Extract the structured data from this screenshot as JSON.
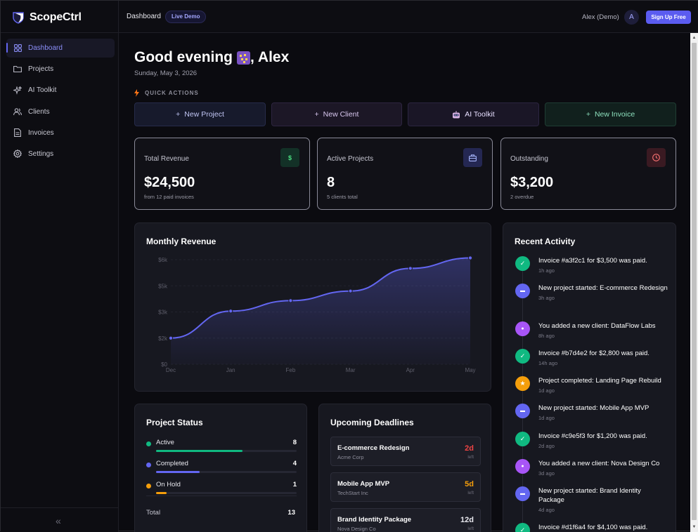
{
  "app": {
    "name": "ScopeCtrl"
  },
  "sidebar": {
    "items": [
      {
        "label": "Dashboard",
        "icon": "grid-icon",
        "active": true
      },
      {
        "label": "Projects",
        "icon": "folder-icon"
      },
      {
        "label": "AI Toolkit",
        "icon": "sparkles-icon"
      },
      {
        "label": "Clients",
        "icon": "users-icon"
      },
      {
        "label": "Invoices",
        "icon": "file-icon"
      },
      {
        "label": "Settings",
        "icon": "gear-icon"
      }
    ],
    "collapse_glyph": "«"
  },
  "topbar": {
    "breadcrumb": "Dashboard",
    "badge": "Live Demo",
    "user_name": "Alex (Demo)",
    "avatar_initial": "A",
    "signup_label": "Sign Up Free"
  },
  "header": {
    "greeting": "Good evening",
    "name": ", Alex",
    "date": "Sunday, May 3, 2026"
  },
  "quick_actions": {
    "label": "QUICK ACTIONS",
    "buttons": [
      {
        "label": "New Project",
        "glyph": "+"
      },
      {
        "label": "New Client",
        "glyph": "+"
      },
      {
        "label": "AI Toolkit",
        "glyph": "🤖"
      },
      {
        "label": "New Invoice",
        "glyph": "+"
      }
    ]
  },
  "stats": [
    {
      "title": "Total Revenue",
      "value": "$24,500",
      "sub": "from 12 paid invoices",
      "icon": "dollar-icon",
      "icon_glyph": "$",
      "color": "#22c55e"
    },
    {
      "title": "Active Projects",
      "value": "8",
      "sub": "5 clients total",
      "icon": "briefcase-icon",
      "icon_glyph": "",
      "color": "#818cf8"
    },
    {
      "title": "Outstanding",
      "value": "$3,200",
      "sub": "2 overdue",
      "icon": "clock-icon",
      "icon_glyph": "",
      "color": "#ef4444"
    }
  ],
  "revenue_card": {
    "title": "Monthly Revenue"
  },
  "chart_data": {
    "type": "area",
    "title": "Monthly Revenue",
    "categories": [
      "Dec",
      "Jan",
      "Feb",
      "Mar",
      "Apr",
      "May"
    ],
    "values": [
      1500,
      3050,
      3650,
      4200,
      5500,
      6100
    ],
    "y_ticks": [
      "$0",
      "$2k",
      "$3k",
      "$5k",
      "$6k"
    ],
    "y_tick_values": [
      0,
      1500,
      3000,
      4500,
      6000
    ],
    "ylim": [
      0,
      6000
    ],
    "line_color": "#6366f1",
    "grid": true
  },
  "activity": {
    "title": "Recent Activity",
    "items": [
      {
        "text": "Invoice #a3f2c1 for $3,500 was paid.",
        "time": "1h ago",
        "kind": "check",
        "color": "#10b981"
      },
      {
        "text": "New project started: E-commerce Redesign",
        "time": "3h ago",
        "kind": "folder",
        "color": "#6366f1"
      },
      {
        "text": "You added a new client: DataFlow Labs",
        "time": "8h ago",
        "kind": "user",
        "color": "#a855f7"
      },
      {
        "text": "Invoice #b7d4e2 for $2,800 was paid.",
        "time": "14h ago",
        "kind": "check",
        "color": "#10b981"
      },
      {
        "text": "Project completed: Landing Page Rebuild",
        "time": "1d ago",
        "kind": "star",
        "color": "#f59e0b"
      },
      {
        "text": "New project started: Mobile App MVP",
        "time": "1d ago",
        "kind": "folder",
        "color": "#6366f1"
      },
      {
        "text": "Invoice #c9e5f3 for $1,200 was paid.",
        "time": "2d ago",
        "kind": "check",
        "color": "#10b981"
      },
      {
        "text": "You added a new client: Nova Design Co",
        "time": "3d ago",
        "kind": "user",
        "color": "#a855f7"
      },
      {
        "text": "New project started: Brand Identity Package",
        "time": "4d ago",
        "kind": "folder",
        "color": "#6366f1"
      },
      {
        "text": "Invoice #d1f6a4 for $4,100 was paid.",
        "time": "",
        "kind": "check",
        "color": "#10b981"
      }
    ]
  },
  "project_status": {
    "title": "Project Status",
    "rows": [
      {
        "label": "Active",
        "count": "8",
        "fraction": 0.615,
        "color": "#10b981"
      },
      {
        "label": "Completed",
        "count": "4",
        "fraction": 0.308,
        "color": "#6366f1"
      },
      {
        "label": "On Hold",
        "count": "1",
        "fraction": 0.077,
        "color": "#f59e0b"
      }
    ],
    "total_label": "Total",
    "total": "13"
  },
  "deadlines": {
    "title": "Upcoming Deadlines",
    "items": [
      {
        "name": "E-commerce Redesign",
        "client": "Acme Corp",
        "days": "2d",
        "left": "left",
        "color": "#ef4444"
      },
      {
        "name": "Mobile App MVP",
        "client": "TechStart Inc",
        "days": "5d",
        "left": "left",
        "color": "#f59e0b"
      },
      {
        "name": "Brand Identity Package",
        "client": "Nova Design Co",
        "days": "12d",
        "left": "left",
        "color": "#e8e8ee"
      }
    ]
  }
}
